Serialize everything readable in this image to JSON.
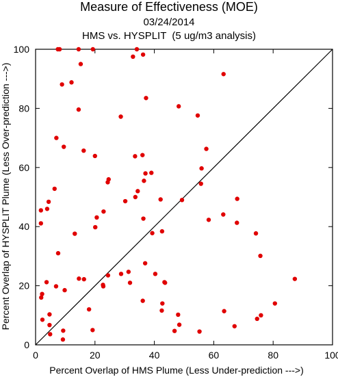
{
  "titles": {
    "main": "Measure of Effectiveness (MOE)",
    "date": "03/24/2014",
    "subtitle": "HMS vs. HYSPLIT  (5 ug/m3 analysis)"
  },
  "chart_data": {
    "type": "scatter",
    "xlabel": "Percent Overlap of HMS Plume (Less Under-prediction --->)",
    "ylabel": "Percent Overlap of HYSPLIT Plume (Less Over-prediction --->)",
    "xlim": [
      0,
      100
    ],
    "ylim": [
      0,
      100
    ],
    "xticks": [
      0,
      20,
      40,
      60,
      80,
      100
    ],
    "yticks": [
      0,
      20,
      40,
      60,
      80,
      100
    ],
    "grid": false,
    "reference_line": "y = x diagonal",
    "marker_color": "#e00000",
    "points": [
      [
        7.5,
        100
      ],
      [
        8.1,
        100
      ],
      [
        14.5,
        100
      ],
      [
        19.3,
        100
      ],
      [
        34.1,
        100
      ],
      [
        32.8,
        97.5
      ],
      [
        36.2,
        98.2
      ],
      [
        15.2,
        95
      ],
      [
        8.9,
        88.1
      ],
      [
        12.1,
        88.8
      ],
      [
        63.3,
        91.6
      ],
      [
        37.2,
        83.5
      ],
      [
        14.5,
        79.6
      ],
      [
        28.7,
        77.2
      ],
      [
        48.2,
        80.7
      ],
      [
        54.6,
        77.6
      ],
      [
        7,
        70
      ],
      [
        9.5,
        67
      ],
      [
        16.2,
        65.7
      ],
      [
        20,
        63.9
      ],
      [
        33.5,
        63.8
      ],
      [
        36,
        64.2
      ],
      [
        57.5,
        66.3
      ],
      [
        24.3,
        55
      ],
      [
        24.6,
        56
      ],
      [
        37,
        58
      ],
      [
        39,
        58.2
      ],
      [
        36.5,
        55.5
      ],
      [
        55.9,
        59.7
      ],
      [
        55.7,
        54.5
      ],
      [
        6.4,
        52.8
      ],
      [
        34.4,
        52
      ],
      [
        33.6,
        50
      ],
      [
        42.1,
        49.2
      ],
      [
        49.3,
        49
      ],
      [
        67.9,
        49.4
      ],
      [
        4.4,
        48.4
      ],
      [
        30.2,
        48.6
      ],
      [
        1.8,
        45.5
      ],
      [
        3.9,
        46
      ],
      [
        22.9,
        45.1
      ],
      [
        20.6,
        43.1
      ],
      [
        36.3,
        42.7
      ],
      [
        58.3,
        42.3
      ],
      [
        63.2,
        44.1
      ],
      [
        1.8,
        41.1
      ],
      [
        20.1,
        39.8
      ],
      [
        13.2,
        37.6
      ],
      [
        39.3,
        37.8
      ],
      [
        42.6,
        38.4
      ],
      [
        67.8,
        41.3
      ],
      [
        74.2,
        37.7
      ],
      [
        7.6,
        31
      ],
      [
        36.9,
        27.6
      ],
      [
        75.7,
        30.1
      ],
      [
        28.8,
        24
      ],
      [
        31.3,
        24.7
      ],
      [
        40.3,
        24
      ],
      [
        43.6,
        21
      ],
      [
        22.7,
        20.3
      ],
      [
        3.7,
        21.2
      ],
      [
        6.9,
        19.8
      ],
      [
        14.6,
        22.4
      ],
      [
        16.3,
        22.2
      ],
      [
        22.8,
        19.8
      ],
      [
        24.4,
        23.5
      ],
      [
        31.8,
        21
      ],
      [
        43.4,
        21.2
      ],
      [
        87.3,
        22.3
      ],
      [
        2.2,
        17.2
      ],
      [
        1.9,
        16
      ],
      [
        9.8,
        18.5
      ],
      [
        36.1,
        14.9
      ],
      [
        42.7,
        14
      ],
      [
        18,
        12
      ],
      [
        63.5,
        11.4
      ],
      [
        80.6,
        14
      ],
      [
        2.3,
        8.5
      ],
      [
        4.7,
        10.3
      ],
      [
        42.5,
        11.6
      ],
      [
        48,
        10.2
      ],
      [
        74.6,
        8.8
      ],
      [
        75.9,
        10
      ],
      [
        4.7,
        6.7
      ],
      [
        9.3,
        4.8
      ],
      [
        19.2,
        5
      ],
      [
        48.4,
        6.8
      ],
      [
        67,
        6.3
      ],
      [
        4.9,
        3.6
      ],
      [
        46.8,
        4.7
      ],
      [
        55.2,
        4.5
      ],
      [
        9.2,
        1.8
      ]
    ]
  }
}
